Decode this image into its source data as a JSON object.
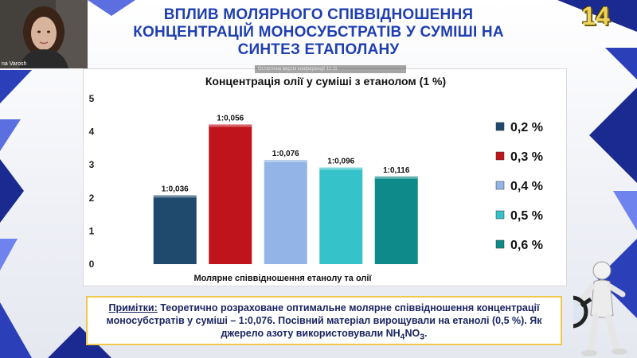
{
  "slide": {
    "title_lines": [
      "ВПЛИВ МОЛЯРНОГО СПІВВІДНОШЕННЯ",
      "КОНЦЕНТРАЦІЙ МОНОСУБСТРАТІВ У СУМІШІ НА",
      "СИНТЕЗ ЕТАПОЛАНУ"
    ],
    "number": "14"
  },
  "webcam": {
    "name": "na Varosh"
  },
  "notice": {
    "text": "Остаточна версія конференції 11:11"
  },
  "chart_data": {
    "type": "bar",
    "title": "Концентрація олії у суміші з етанолом (1 %)",
    "xlabel": "Молярне співвідношення етанолу та олії",
    "ylabel": "",
    "ylim": [
      0,
      5
    ],
    "yticks": [
      0,
      1,
      2,
      3,
      4,
      5
    ],
    "grid": false,
    "legend_position": "right",
    "series": [
      {
        "name": "0,2 %",
        "label": "1:0,036",
        "value": 2.08,
        "color": "#1f4a6e"
      },
      {
        "name": "0,3 %",
        "label": "1:0,056",
        "value": 4.22,
        "color": "#c0141c"
      },
      {
        "name": "0,4 %",
        "label": "1:0,076",
        "value": 3.15,
        "color": "#93b4e6"
      },
      {
        "name": "0,5 %",
        "label": "1:0,096",
        "value": 2.92,
        "color": "#35c2c8"
      },
      {
        "name": "0,6 %",
        "label": "1:0,116",
        "value": 2.65,
        "color": "#0f8a8a"
      }
    ]
  },
  "note": {
    "label": "Примітки:",
    "text": " Теоретично розраховане оптимальне молярне співвідношення концентрації моносубстратів у суміші – 1:0,076. Посівний матеріал вирощували на етанолі (0,5 %). Як джерело азоту використовували ",
    "formula_parts": [
      "NH",
      "4",
      "NO",
      "3"
    ],
    "end": "."
  }
}
